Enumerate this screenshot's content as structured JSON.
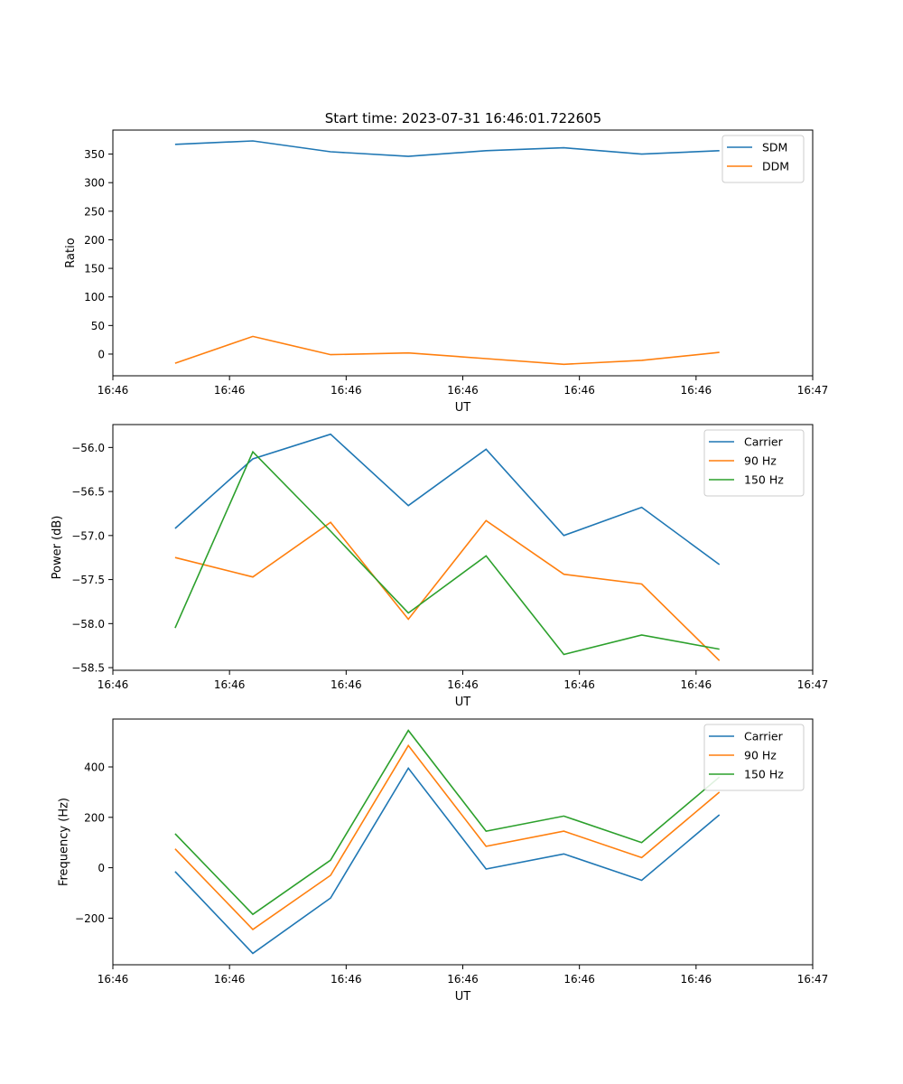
{
  "figure_title": "Start time: 2023-07-31 16:46:01.722605",
  "chart_data": [
    {
      "type": "line",
      "xlabel": "UT",
      "ylabel": "Ratio",
      "x": [
        1,
        2,
        3,
        4,
        5,
        6,
        7,
        8
      ],
      "xlim": [
        0.2,
        9.2
      ],
      "x_ticks": [
        0.2,
        1.7,
        3.2,
        4.7,
        6.2,
        7.7,
        9.2
      ],
      "x_tick_labels": [
        "16:46",
        "16:46",
        "16:46",
        "16:46",
        "16:46",
        "16:46",
        "16:47"
      ],
      "ylim": [
        -38,
        392
      ],
      "y_ticks": [
        0,
        50,
        100,
        150,
        200,
        250,
        300,
        350
      ],
      "legend": "top-right",
      "series": [
        {
          "name": "SDM",
          "color": "#1f77b4",
          "values": [
            367,
            373,
            354,
            346,
            356,
            361,
            350,
            356
          ]
        },
        {
          "name": "DDM",
          "color": "#ff7f0e",
          "values": [
            -16,
            31,
            -1,
            2,
            -8,
            -18,
            -11,
            3
          ]
        }
      ]
    },
    {
      "type": "line",
      "xlabel": "UT",
      "ylabel": "Power (dB)",
      "x": [
        1,
        2,
        3,
        4,
        5,
        6,
        7,
        8
      ],
      "xlim": [
        0.2,
        9.2
      ],
      "x_ticks": [
        0.2,
        1.7,
        3.2,
        4.7,
        6.2,
        7.7,
        9.2
      ],
      "x_tick_labels": [
        "16:46",
        "16:46",
        "16:46",
        "16:46",
        "16:46",
        "16:46",
        "16:47"
      ],
      "ylim": [
        -58.53,
        -55.74
      ],
      "y_ticks": [
        -58.5,
        -58.0,
        -57.5,
        -57.0,
        -56.5,
        -56.0
      ],
      "y_tick_labels": [
        "−58.5",
        "−58.0",
        "−57.5",
        "−57.0",
        "−56.5",
        "−56.0"
      ],
      "legend": "top-right",
      "series": [
        {
          "name": "Carrier",
          "color": "#1f77b4",
          "values": [
            -56.92,
            -56.13,
            -55.85,
            -56.66,
            -56.02,
            -57.0,
            -56.68,
            -57.33
          ]
        },
        {
          "name": "90 Hz",
          "color": "#ff7f0e",
          "values": [
            -57.25,
            -57.47,
            -56.85,
            -57.95,
            -56.83,
            -57.44,
            -57.55,
            -58.42
          ]
        },
        {
          "name": "150 Hz",
          "color": "#2ca02c",
          "values": [
            -58.05,
            -56.05,
            -56.95,
            -57.88,
            -57.23,
            -58.35,
            -58.13,
            -58.29
          ]
        }
      ]
    },
    {
      "type": "line",
      "xlabel": "UT",
      "ylabel": "Frequency (Hz)",
      "x": [
        1,
        2,
        3,
        4,
        5,
        6,
        7,
        8
      ],
      "xlim": [
        0.2,
        9.2
      ],
      "x_ticks": [
        0.2,
        1.7,
        3.2,
        4.7,
        6.2,
        7.7,
        9.2
      ],
      "x_tick_labels": [
        "16:46",
        "16:46",
        "16:46",
        "16:46",
        "16:46",
        "16:46",
        "16:47"
      ],
      "ylim": [
        -385,
        590
      ],
      "y_ticks": [
        -200,
        0,
        200,
        400
      ],
      "y_tick_labels": [
        "−200",
        "0",
        "200",
        "400"
      ],
      "legend": "top-right",
      "series": [
        {
          "name": "Carrier",
          "color": "#1f77b4",
          "values": [
            -15,
            -340,
            -120,
            395,
            -5,
            55,
            -50,
            210
          ]
        },
        {
          "name": "90 Hz",
          "color": "#ff7f0e",
          "values": [
            75,
            -245,
            -30,
            485,
            85,
            145,
            40,
            300
          ]
        },
        {
          "name": "150 Hz",
          "color": "#2ca02c",
          "values": [
            135,
            -185,
            30,
            545,
            145,
            205,
            100,
            360
          ]
        }
      ]
    }
  ]
}
